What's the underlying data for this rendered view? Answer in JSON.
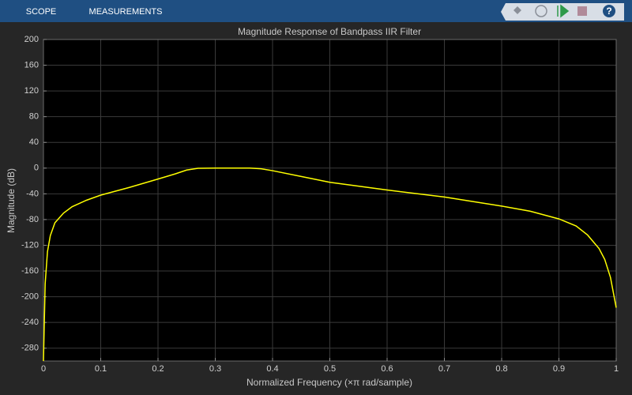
{
  "toolbar": {
    "tabs": [
      "SCOPE",
      "MEASUREMENTS"
    ],
    "help": "?"
  },
  "chart_data": {
    "type": "line",
    "title": "Magnitude Response of Bandpass IIR Filter",
    "xlabel": "Normalized Frequency (×π rad/sample)",
    "ylabel": "Magnitude (dB)",
    "x": [
      0,
      0.003,
      0.007,
      0.012,
      0.02,
      0.035,
      0.05,
      0.075,
      0.1,
      0.15,
      0.2,
      0.23,
      0.25,
      0.27,
      0.3,
      0.36,
      0.38,
      0.4,
      0.45,
      0.5,
      0.6,
      0.7,
      0.8,
      0.85,
      0.9,
      0.93,
      0.95,
      0.97,
      0.98,
      0.99,
      1
    ],
    "values": [
      -300,
      -180,
      -130,
      -105,
      -85,
      -70,
      -60,
      -50,
      -42,
      -30,
      -17,
      -9,
      -3,
      -0.3,
      0,
      0,
      -1,
      -4,
      -13,
      -22,
      -34,
      -45,
      -59,
      -67,
      -79,
      -90,
      -104,
      -125,
      -142,
      -170,
      -217
    ],
    "color": "#ffff00",
    "xlim": [
      0,
      1
    ],
    "xticks": [
      0,
      0.1,
      0.2,
      0.3,
      0.4,
      0.5,
      0.6,
      0.7,
      0.8,
      0.9,
      1
    ],
    "ylim": [
      -300,
      200
    ],
    "yticks": [
      200,
      160,
      120,
      80,
      40,
      0,
      -40,
      -80,
      -120,
      -160,
      -200,
      -240,
      -280
    ],
    "grid": true
  }
}
